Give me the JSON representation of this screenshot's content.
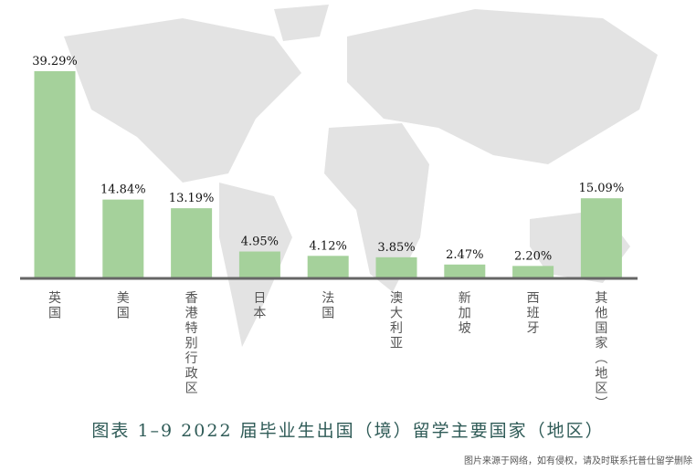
{
  "chart_data": {
    "type": "bar",
    "title": "图表 1–9 2022 届毕业生出国（境）留学主要国家（地区）",
    "categories": [
      "英国",
      "美国",
      "香港特别行政区",
      "日本",
      "法国",
      "澳大利亚",
      "新加坡",
      "西班牙",
      "其他国家（地区）"
    ],
    "values": [
      39.29,
      14.84,
      13.19,
      4.95,
      4.12,
      3.85,
      2.47,
      2.2,
      15.09
    ],
    "data_labels": [
      "39.29%",
      "14.84%",
      "13.19%",
      "4.95%",
      "4.12%",
      "3.85%",
      "2.47%",
      "2.20%",
      "15.09%"
    ],
    "ylim": [
      0,
      40
    ],
    "grid": false,
    "bar_color": "#a5d19b",
    "axis_color": "#666666",
    "background": "faded gray world map"
  },
  "watermark": "图片来源于网络，如有侵权，请及时联系托普仕留学删除"
}
